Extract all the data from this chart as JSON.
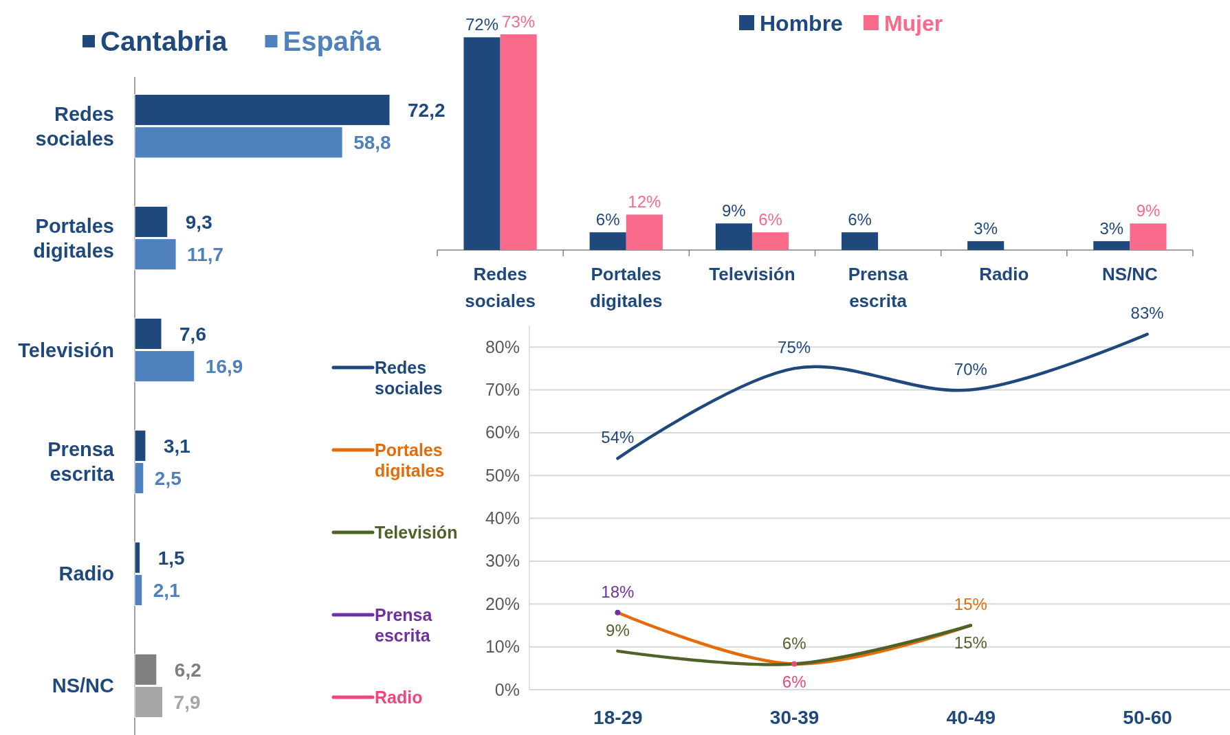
{
  "chart_data": [
    {
      "type": "bar",
      "orientation": "horizontal",
      "categories": [
        "Redes sociales",
        "Portales digitales",
        "Televisión",
        "Prensa escrita",
        "Radio",
        "NS/NC"
      ],
      "series": [
        {
          "name": "Cantabria",
          "color": "#1f497d",
          "colors": [
            "#1f497d",
            "#1f497d",
            "#1f497d",
            "#1f497d",
            "#1f497d",
            "#7f7f7f"
          ],
          "values": [
            72.2,
            9.3,
            7.6,
            3.1,
            1.5,
            6.2
          ],
          "value_labels": [
            "72,2",
            "9,3",
            "7,6",
            "3,1",
            "1,5",
            "6,2"
          ]
        },
        {
          "name": "España",
          "color": "#4f81bd",
          "colors": [
            "#4f81bd",
            "#4f81bd",
            "#4f81bd",
            "#4f81bd",
            "#4f81bd",
            "#a6a6a6"
          ],
          "values": [
            58.8,
            11.7,
            16.9,
            2.5,
            2.1,
            7.9
          ],
          "value_labels": [
            "58,8",
            "11,7",
            "16,9",
            "2,5",
            "2,1",
            "7,9"
          ]
        }
      ],
      "legend": "top",
      "tick_labels": "y"
    },
    {
      "type": "bar",
      "categories": [
        "Redes sociales",
        "Portales digitales",
        "Televisión",
        "Prensa escrita",
        "Radio",
        "NS/NC"
      ],
      "series": [
        {
          "name": "Hombre",
          "color": "#1f497d",
          "values": [
            72,
            6,
            9,
            6,
            3,
            3
          ],
          "value_labels": [
            "72%",
            "6%",
            "9%",
            "6%",
            "3%",
            "3%"
          ]
        },
        {
          "name": "Mujer",
          "color": "#f76a8a",
          "values": [
            73,
            12,
            6,
            null,
            null,
            9
          ],
          "value_labels": [
            "73%",
            "12%",
            "6%",
            null,
            null,
            "9%"
          ]
        }
      ],
      "legend": "top",
      "tick_labels": "x"
    },
    {
      "type": "line",
      "categories": [
        "18-29",
        "30-39",
        "40-49",
        "50-60"
      ],
      "ylim": [
        0,
        85
      ],
      "yticks": [
        {
          "value": 0,
          "label": "0%"
        },
        {
          "value": 10,
          "label": "10%"
        },
        {
          "value": 20,
          "label": "20%"
        },
        {
          "value": 30,
          "label": "30%"
        },
        {
          "value": 40,
          "label": "40%"
        },
        {
          "value": 50,
          "label": "50%"
        },
        {
          "value": 60,
          "label": "60%"
        },
        {
          "value": 70,
          "label": "70%"
        },
        {
          "value": 80,
          "label": "80%"
        }
      ],
      "series": [
        {
          "name": "Redes sociales",
          "color": "#1f497d",
          "values": [
            54,
            75,
            70,
            83
          ],
          "value_labels": [
            "54%",
            "75%",
            "70%",
            "83%"
          ]
        },
        {
          "name": "Portales digitales",
          "color": "#e46c0a",
          "values": [
            18,
            6,
            15,
            null
          ],
          "value_labels": [
            null,
            null,
            "15%",
            null
          ]
        },
        {
          "name": "Televisión",
          "color": "#4f6228",
          "values": [
            9,
            6,
            15,
            null
          ],
          "value_labels": [
            "9%",
            "6%",
            "15%",
            null
          ]
        },
        {
          "name": "Prensa escrita",
          "color": "#7030a0",
          "values": [
            18,
            null,
            null,
            null
          ],
          "value_labels": [
            "18%",
            null,
            null,
            null
          ],
          "marker": "circle"
        },
        {
          "name": "Radio",
          "color": "#f0467a",
          "values": [
            null,
            6,
            null,
            null
          ],
          "value_labels": [
            null,
            "6%",
            null,
            null
          ],
          "marker": "circle"
        }
      ],
      "grid": "y",
      "legend": "left",
      "line_style": "solid"
    }
  ]
}
